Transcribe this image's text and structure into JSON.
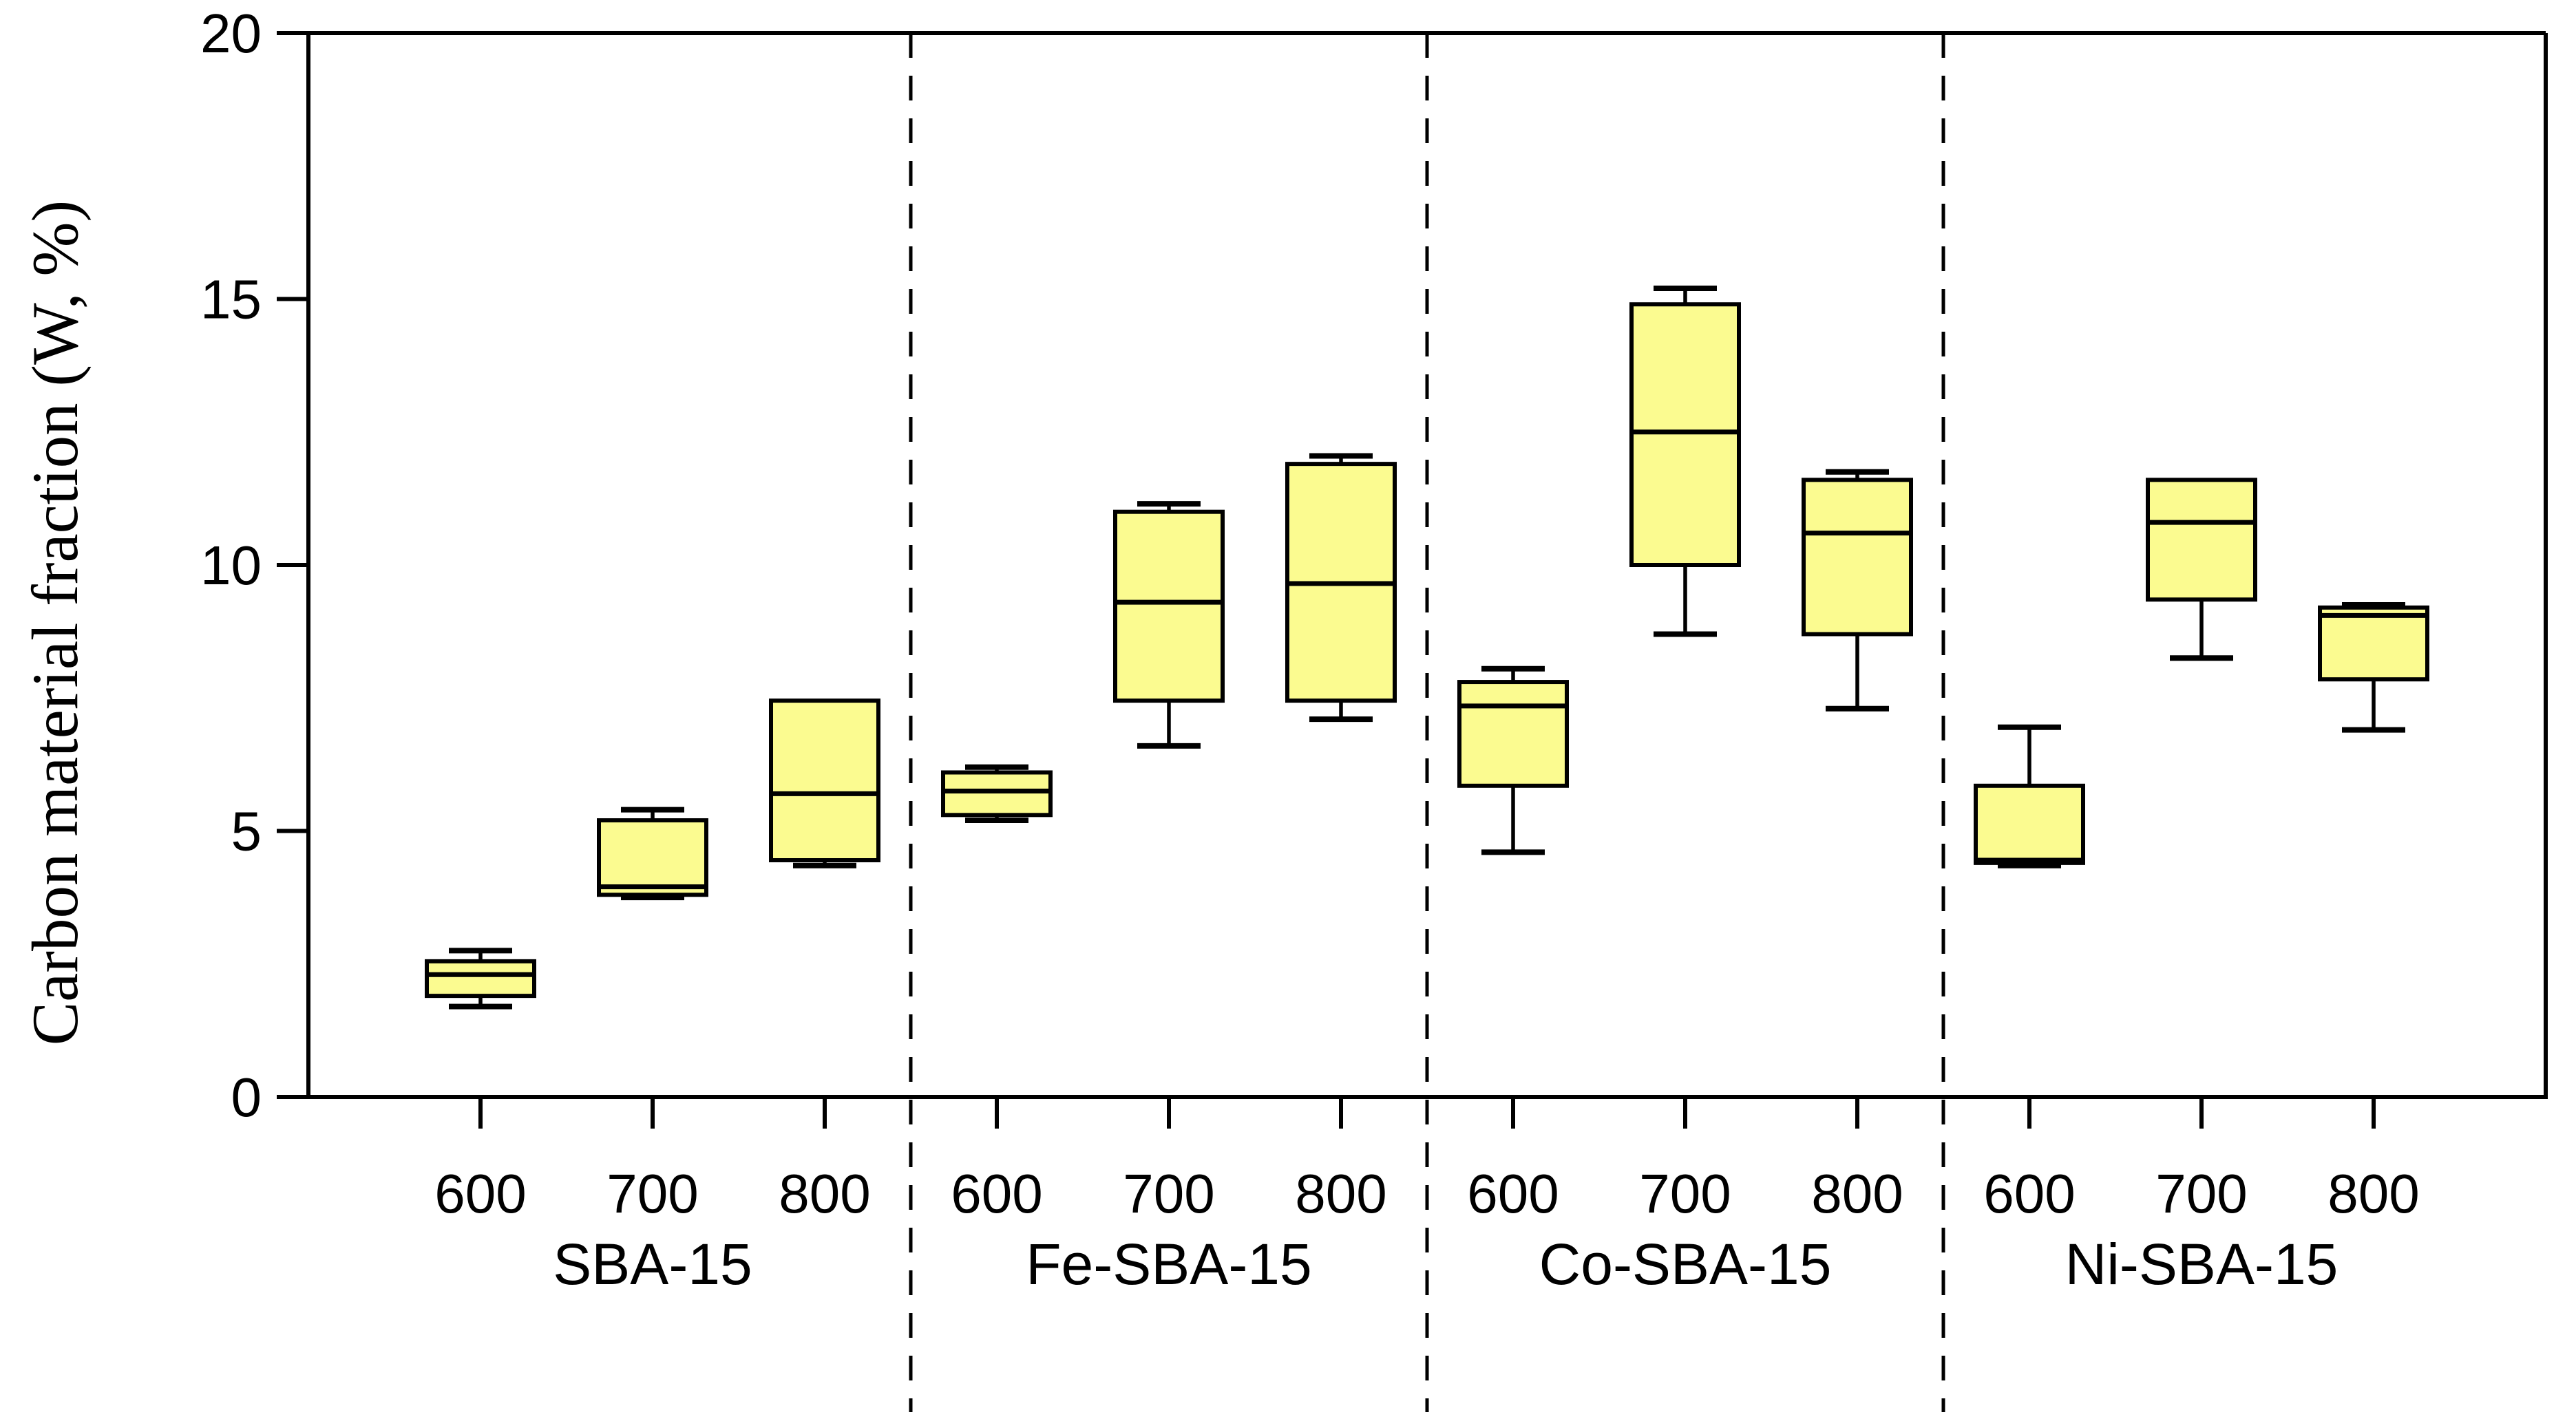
{
  "chart_data": {
    "type": "box",
    "title": "",
    "ylabel": "Carbon material fraction (W, %)",
    "xlabel": "",
    "ylim": [
      0,
      20
    ],
    "y_ticks": [
      "0",
      "5",
      "10",
      "15",
      "20"
    ],
    "grid": false,
    "legend": "none",
    "box_fill": "#FBFB90",
    "stroke_color": "#000000",
    "separator_style": "dashed",
    "groups": [
      {
        "label": "SBA-15",
        "boxes": [
          {
            "category": "600",
            "min": 1.7,
            "q1": 1.9,
            "median": 2.3,
            "q3": 2.55,
            "max": 2.75
          },
          {
            "category": "700",
            "min": 3.75,
            "q1": 3.8,
            "median": 3.95,
            "q3": 5.2,
            "max": 5.4
          },
          {
            "category": "800",
            "min": 4.35,
            "q1": 4.45,
            "median": 5.7,
            "q3": 7.45,
            "max": 7.45
          }
        ]
      },
      {
        "label": "Fe-SBA-15",
        "boxes": [
          {
            "category": "600",
            "min": 5.2,
            "q1": 5.3,
            "median": 5.75,
            "q3": 6.1,
            "max": 6.2
          },
          {
            "category": "700",
            "min": 6.6,
            "q1": 7.45,
            "median": 9.3,
            "q3": 11.0,
            "max": 11.15
          },
          {
            "category": "800",
            "min": 7.1,
            "q1": 7.45,
            "median": 9.65,
            "q3": 11.9,
            "max": 12.05
          }
        ]
      },
      {
        "label": "Co-SBA-15",
        "boxes": [
          {
            "category": "600",
            "min": 4.6,
            "q1": 5.85,
            "median": 7.35,
            "q3": 7.8,
            "max": 8.05
          },
          {
            "category": "700",
            "min": 8.7,
            "q1": 10.0,
            "median": 12.5,
            "q3": 14.9,
            "max": 15.2
          },
          {
            "category": "800",
            "min": 7.3,
            "q1": 8.7,
            "median": 10.6,
            "q3": 11.6,
            "max": 11.75
          }
        ]
      },
      {
        "label": "Ni-SBA-15",
        "boxes": [
          {
            "category": "600",
            "min": 4.35,
            "q1": 4.4,
            "median": 4.45,
            "q3": 5.85,
            "max": 6.95
          },
          {
            "category": "700",
            "min": 8.25,
            "q1": 9.35,
            "median": 10.8,
            "q3": 11.6,
            "max": 11.6
          },
          {
            "category": "800",
            "min": 6.9,
            "q1": 7.85,
            "median": 9.05,
            "q3": 9.2,
            "max": 9.25
          }
        ]
      }
    ]
  }
}
